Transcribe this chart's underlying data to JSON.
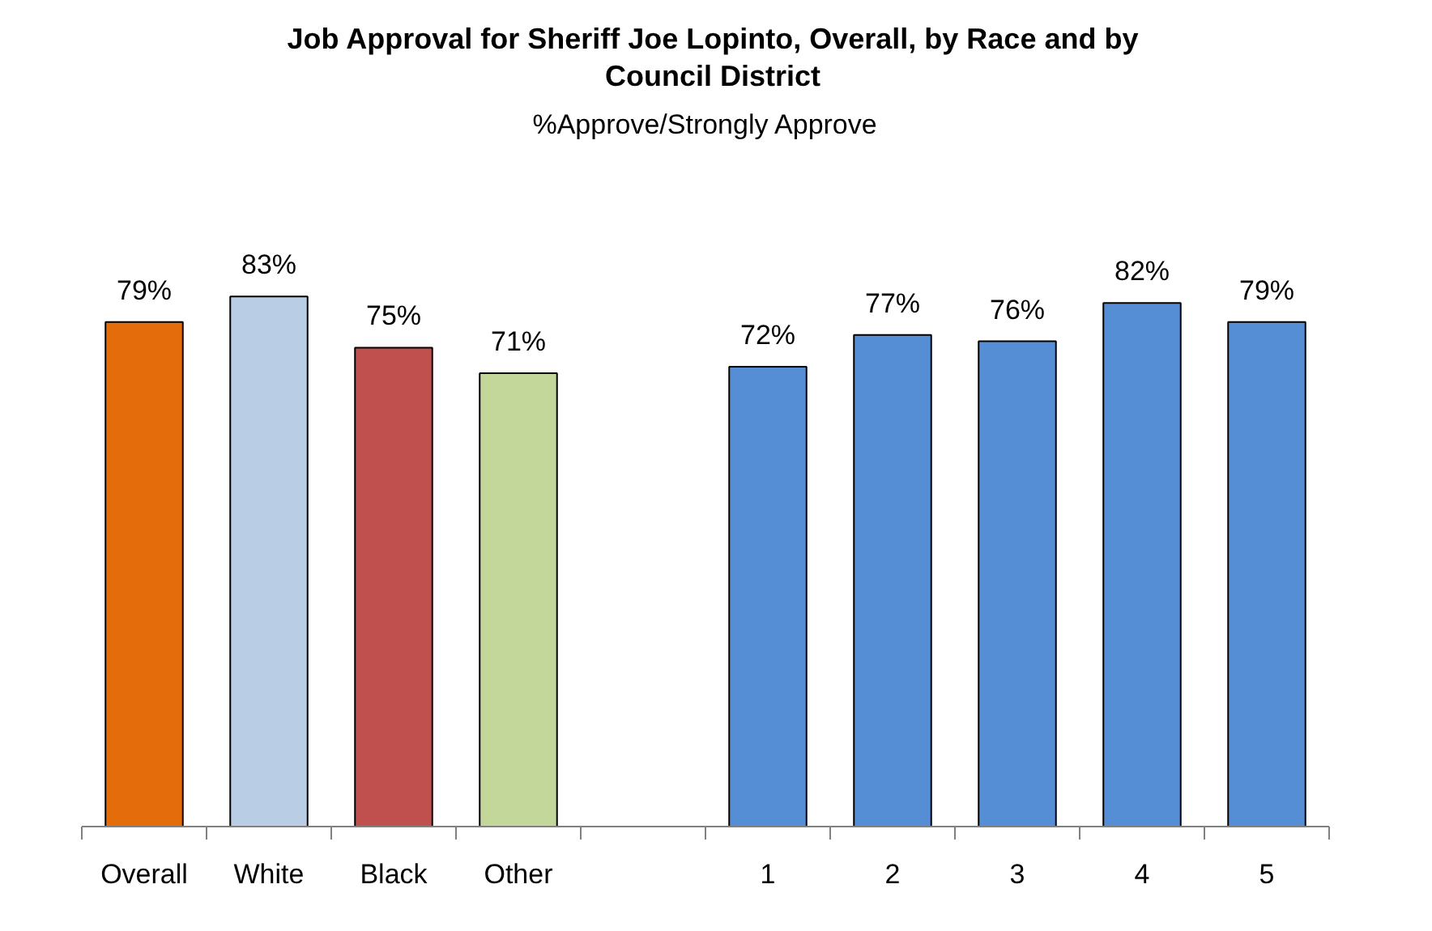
{
  "chart_data": {
    "type": "bar",
    "title": "Job Approval for Sheriff Joe Lopinto, Overall, by Race and by Council District",
    "subtitle": "%Approve/Strongly Approve",
    "categories": [
      "Overall",
      "White",
      "Black",
      "Other",
      null,
      "1",
      "2",
      "3",
      "4",
      "5"
    ],
    "values": [
      79,
      83,
      75,
      71,
      null,
      72,
      77,
      76,
      82,
      79
    ],
    "colors": [
      "#e46c0a",
      "#b9cde5",
      "#c0504d",
      "#c4d79b",
      null,
      "#558ed5",
      "#558ed5",
      "#558ed5",
      "#558ed5",
      "#558ed5"
    ],
    "value_labels": [
      "79%",
      "83%",
      "75%",
      "71%",
      null,
      "72%",
      "77%",
      "76%",
      "82%",
      "79%"
    ],
    "grid": false
  }
}
